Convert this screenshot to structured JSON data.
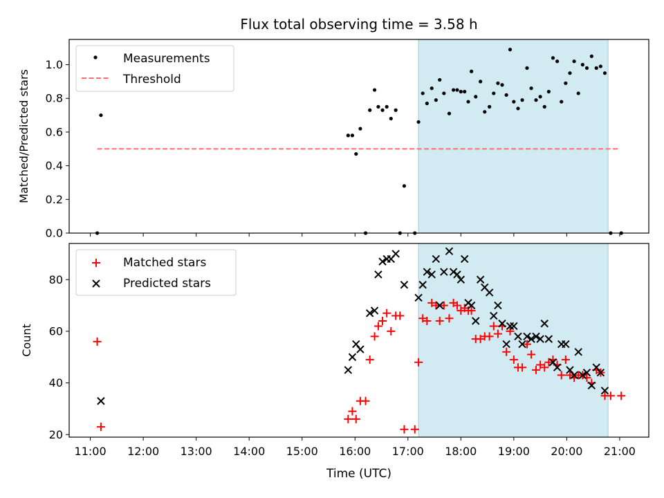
{
  "chart_data": [
    {
      "type": "scatter",
      "title": "Flux total observing time = 3.58 h",
      "xlabel": "",
      "ylabel": "Matched/Predicted stars",
      "xlim": [
        10.6,
        21.55
      ],
      "ylim": [
        0.0,
        1.15
      ],
      "yticks": [
        0.0,
        0.2,
        0.4,
        0.6,
        0.8,
        1.0
      ],
      "ytick_labels": [
        "0.0",
        "0.2",
        "0.4",
        "0.6",
        "0.8",
        "1.0"
      ],
      "legend_position": "upper-left",
      "shaded_span": [
        17.2,
        20.78
      ],
      "shade_color": "#add8e6",
      "series": [
        {
          "name": "Measurements",
          "marker": "dot",
          "color": "#000000",
          "points": [
            [
              11.13,
              0.0
            ],
            [
              11.2,
              0.7
            ],
            [
              15.87,
              0.58
            ],
            [
              15.95,
              0.58
            ],
            [
              16.02,
              0.47
            ],
            [
              16.1,
              0.62
            ],
            [
              16.2,
              0.0
            ],
            [
              16.28,
              0.73
            ],
            [
              16.37,
              0.85
            ],
            [
              16.44,
              0.75
            ],
            [
              16.52,
              0.73
            ],
            [
              16.6,
              0.75
            ],
            [
              16.68,
              0.68
            ],
            [
              16.77,
              0.73
            ],
            [
              16.85,
              0.0
            ],
            [
              16.93,
              0.28
            ],
            [
              17.13,
              0.0
            ],
            [
              17.2,
              0.66
            ],
            [
              17.28,
              0.83
            ],
            [
              17.36,
              0.77
            ],
            [
              17.45,
              0.86
            ],
            [
              17.53,
              0.79
            ],
            [
              17.6,
              0.91
            ],
            [
              17.68,
              0.83
            ],
            [
              17.78,
              0.71
            ],
            [
              17.86,
              0.85
            ],
            [
              17.93,
              0.85
            ],
            [
              18.0,
              0.84
            ],
            [
              18.07,
              0.84
            ],
            [
              18.14,
              0.78
            ],
            [
              18.2,
              0.96
            ],
            [
              18.28,
              0.81
            ],
            [
              18.37,
              0.9
            ],
            [
              18.45,
              0.72
            ],
            [
              18.54,
              0.75
            ],
            [
              18.62,
              0.83
            ],
            [
              18.7,
              0.89
            ],
            [
              18.78,
              0.88
            ],
            [
              18.86,
              0.82
            ],
            [
              18.93,
              1.09
            ],
            [
              19.0,
              0.78
            ],
            [
              19.08,
              0.74
            ],
            [
              19.16,
              0.79
            ],
            [
              19.25,
              0.98
            ],
            [
              19.33,
              0.86
            ],
            [
              19.42,
              0.79
            ],
            [
              19.5,
              0.81
            ],
            [
              19.58,
              0.75
            ],
            [
              19.66,
              0.84
            ],
            [
              19.74,
              1.04
            ],
            [
              19.82,
              1.02
            ],
            [
              19.9,
              0.78
            ],
            [
              19.98,
              0.89
            ],
            [
              20.06,
              0.95
            ],
            [
              20.14,
              1.02
            ],
            [
              20.22,
              0.83
            ],
            [
              20.3,
              1.0
            ],
            [
              20.38,
              0.98
            ],
            [
              20.47,
              1.05
            ],
            [
              20.56,
              0.98
            ],
            [
              20.64,
              0.99
            ],
            [
              20.72,
              0.95
            ],
            [
              20.83,
              0.0
            ],
            [
              21.03,
              0.0
            ]
          ]
        },
        {
          "name": "Threshold",
          "marker": "dashed-line",
          "color": "#ff6b6b",
          "points": [
            [
              11.13,
              0.5
            ],
            [
              21.0,
              0.5
            ]
          ]
        }
      ]
    },
    {
      "type": "scatter",
      "title": "",
      "xlabel": "Time (UTC)",
      "ylabel": "Count",
      "xlim": [
        10.6,
        21.55
      ],
      "ylim": [
        19.0,
        94.0
      ],
      "yticks": [
        20,
        40,
        60,
        80
      ],
      "ytick_labels": [
        "20",
        "40",
        "60",
        "80"
      ],
      "xticks": [
        11,
        12,
        13,
        14,
        15,
        16,
        17,
        18,
        19,
        20,
        21
      ],
      "xtick_labels": [
        "11:00",
        "12:00",
        "13:00",
        "14:00",
        "15:00",
        "16:00",
        "17:00",
        "18:00",
        "19:00",
        "20:00",
        "21:00"
      ],
      "legend_position": "upper-left",
      "shaded_span": [
        17.2,
        20.78
      ],
      "shade_color": "#add8e6",
      "series": [
        {
          "name": "Matched stars",
          "marker": "plus",
          "color": "#ff0000",
          "points": [
            [
              11.13,
              56
            ],
            [
              11.2,
              23
            ],
            [
              15.87,
              26
            ],
            [
              15.95,
              29
            ],
            [
              16.02,
              26
            ],
            [
              16.1,
              33
            ],
            [
              16.2,
              33
            ],
            [
              16.28,
              49
            ],
            [
              16.37,
              58
            ],
            [
              16.44,
              62
            ],
            [
              16.52,
              64
            ],
            [
              16.6,
              67
            ],
            [
              16.68,
              60
            ],
            [
              16.77,
              66
            ],
            [
              16.85,
              66
            ],
            [
              16.93,
              22
            ],
            [
              17.13,
              22
            ],
            [
              17.2,
              48
            ],
            [
              17.28,
              65
            ],
            [
              17.36,
              64
            ],
            [
              17.45,
              71
            ],
            [
              17.53,
              70
            ],
            [
              17.6,
              64
            ],
            [
              17.68,
              70
            ],
            [
              17.78,
              65
            ],
            [
              17.86,
              71
            ],
            [
              17.93,
              70
            ],
            [
              18.0,
              68
            ],
            [
              18.07,
              69
            ],
            [
              18.14,
              68
            ],
            [
              18.2,
              68
            ],
            [
              18.28,
              57
            ],
            [
              18.37,
              57
            ],
            [
              18.45,
              58
            ],
            [
              18.54,
              58
            ],
            [
              18.62,
              62
            ],
            [
              18.7,
              59
            ],
            [
              18.78,
              62
            ],
            [
              18.86,
              52
            ],
            [
              18.93,
              60
            ],
            [
              19.0,
              49
            ],
            [
              19.08,
              46
            ],
            [
              19.16,
              46
            ],
            [
              19.25,
              55
            ],
            [
              19.33,
              51
            ],
            [
              19.42,
              45
            ],
            [
              19.5,
              47
            ],
            [
              19.58,
              46
            ],
            [
              19.66,
              48
            ],
            [
              19.74,
              49
            ],
            [
              19.82,
              47
            ],
            [
              19.9,
              43
            ],
            [
              19.98,
              49
            ],
            [
              20.06,
              43
            ],
            [
              20.14,
              42
            ],
            [
              20.22,
              43
            ],
            [
              20.3,
              43
            ],
            [
              20.38,
              42
            ],
            [
              20.47,
              40
            ],
            [
              20.56,
              45
            ],
            [
              20.64,
              44
            ],
            [
              20.72,
              35
            ],
            [
              20.83,
              35
            ],
            [
              21.03,
              35
            ]
          ]
        },
        {
          "name": "Predicted stars",
          "marker": "x",
          "color": "#000000",
          "points": [
            [
              11.2,
              33
            ],
            [
              15.87,
              45
            ],
            [
              15.95,
              50
            ],
            [
              16.02,
              55
            ],
            [
              16.1,
              53
            ],
            [
              16.28,
              67
            ],
            [
              16.37,
              68
            ],
            [
              16.44,
              82
            ],
            [
              16.52,
              87
            ],
            [
              16.6,
              88
            ],
            [
              16.68,
              88
            ],
            [
              16.77,
              90
            ],
            [
              16.93,
              78
            ],
            [
              17.2,
              73
            ],
            [
              17.28,
              78
            ],
            [
              17.36,
              83
            ],
            [
              17.45,
              82
            ],
            [
              17.53,
              88
            ],
            [
              17.6,
              70
            ],
            [
              17.68,
              83
            ],
            [
              17.78,
              91
            ],
            [
              17.86,
              83
            ],
            [
              17.93,
              82
            ],
            [
              18.0,
              80
            ],
            [
              18.07,
              88
            ],
            [
              18.14,
              71
            ],
            [
              18.2,
              70
            ],
            [
              18.28,
              64
            ],
            [
              18.37,
              80
            ],
            [
              18.45,
              77
            ],
            [
              18.54,
              75
            ],
            [
              18.62,
              66
            ],
            [
              18.7,
              70
            ],
            [
              18.78,
              63
            ],
            [
              18.86,
              55
            ],
            [
              18.93,
              62
            ],
            [
              19.0,
              62
            ],
            [
              19.08,
              58
            ],
            [
              19.16,
              55
            ],
            [
              19.25,
              58
            ],
            [
              19.33,
              57
            ],
            [
              19.42,
              58
            ],
            [
              19.5,
              57
            ],
            [
              19.58,
              63
            ],
            [
              19.66,
              57
            ],
            [
              19.74,
              48
            ],
            [
              19.82,
              46
            ],
            [
              19.9,
              55
            ],
            [
              19.98,
              55
            ],
            [
              20.06,
              45
            ],
            [
              20.14,
              43
            ],
            [
              20.22,
              52
            ],
            [
              20.3,
              43
            ],
            [
              20.38,
              44
            ],
            [
              20.47,
              39
            ],
            [
              20.56,
              46
            ],
            [
              20.64,
              44
            ],
            [
              20.72,
              37
            ]
          ]
        }
      ]
    }
  ]
}
